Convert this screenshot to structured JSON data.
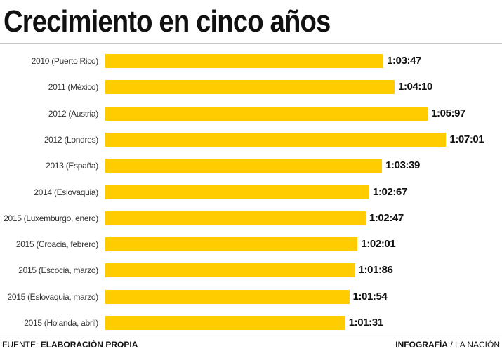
{
  "chart_data": {
    "type": "bar",
    "horizontal": true,
    "title": "Crecimiento en cinco años",
    "categories": [
      "2010 (Puerto Rico)",
      "2011 (México)",
      "2012 (Austria)",
      "2012 (Londres)",
      "2013 (España)",
      "2014 (Eslovaquia)",
      "2015 (Luxemburgo, enero)",
      "2015 (Croacia, febrero)",
      "2015 (Escocia, marzo)",
      "2015 (Eslovaquia, marzo)",
      "2015 (Holanda, abril)"
    ],
    "values": [
      "1:03:47",
      "1:04:10",
      "1:05:97",
      "1:07:01",
      "1:03:39",
      "1:02:67",
      "1:02:47",
      "1:02:01",
      "1:01:86",
      "1:01:54",
      "1:01:31"
    ],
    "grid": false,
    "colors": {
      "bar": "#FFCC00",
      "text": "#111111"
    }
  },
  "footer": {
    "source_label": "FUENTE:",
    "source_value": "ELABORACIÓN PROPIA",
    "credit_section": "INFOGRAFÍA",
    "credit_outlet": "/ LA NACIÓN"
  }
}
